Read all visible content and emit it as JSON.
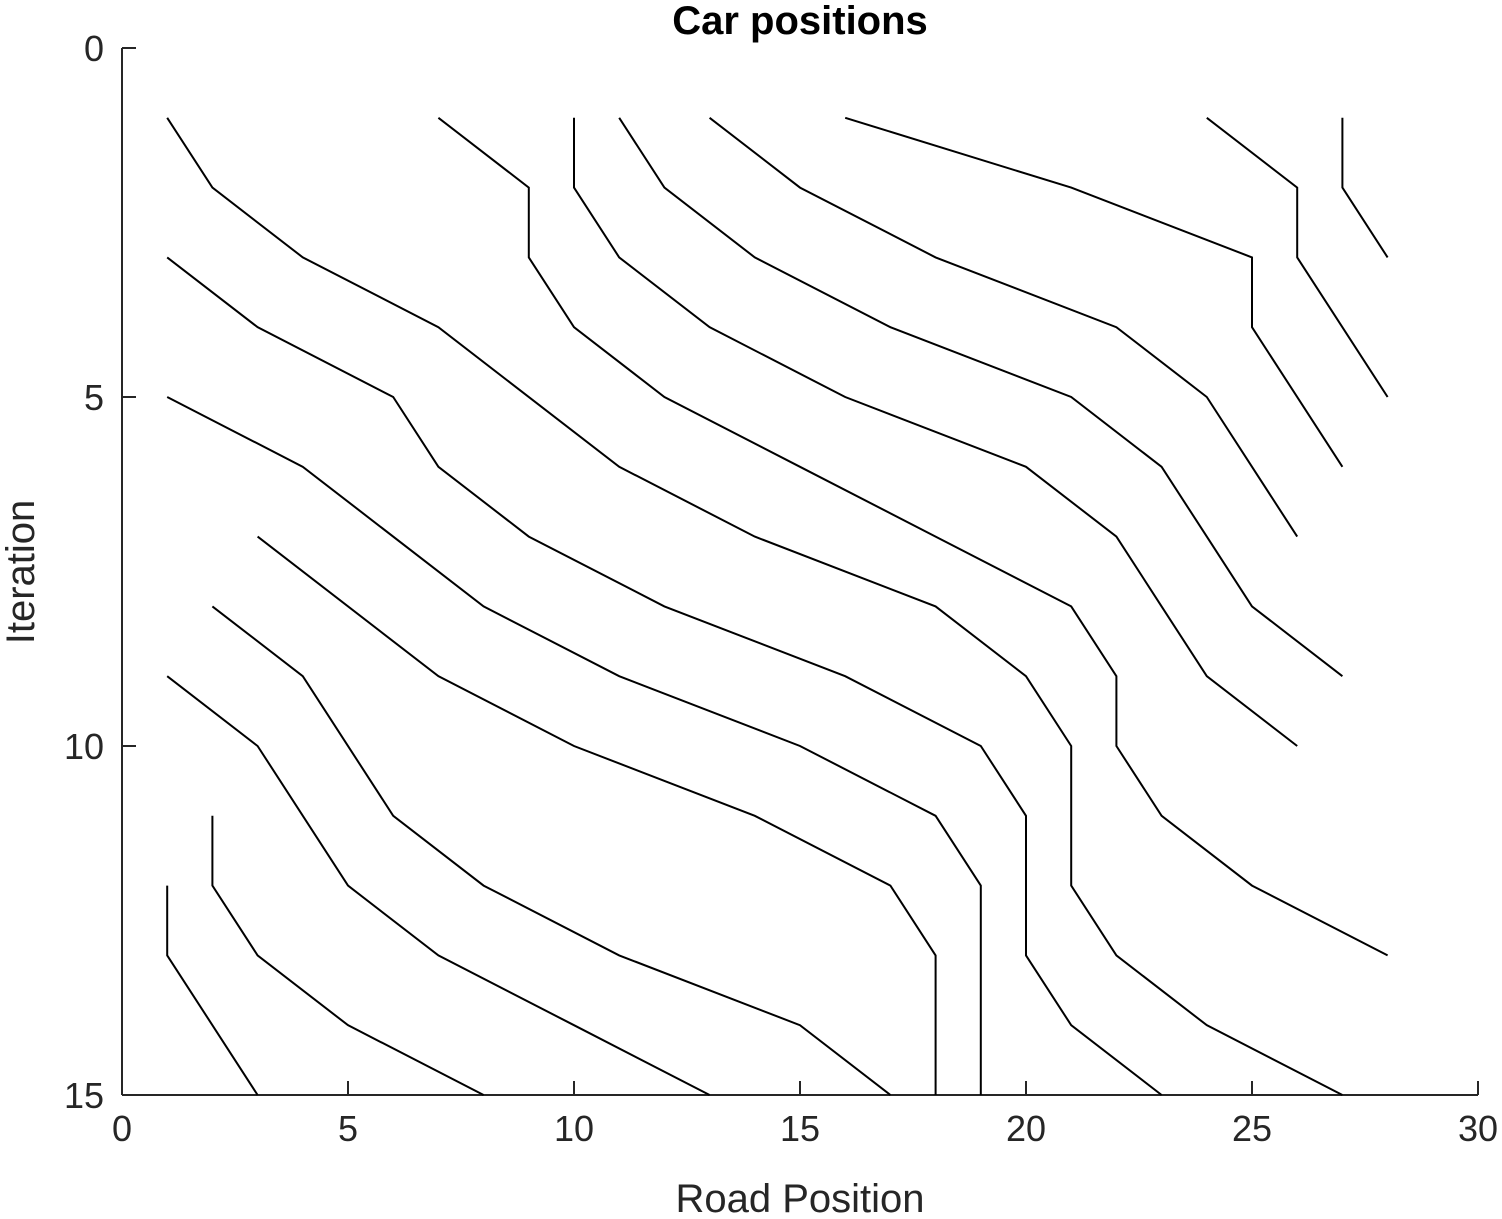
{
  "chart_data": {
    "type": "line",
    "title": "Car positions",
    "xlabel": "Road Position",
    "ylabel": "Iteration",
    "xlim": [
      0,
      30
    ],
    "ylim": [
      0,
      15
    ],
    "y_reversed": true,
    "grid": false,
    "legend": "none",
    "xticks": [
      0,
      5,
      10,
      15,
      20,
      25,
      30
    ],
    "yticks": [
      0,
      5,
      10,
      15
    ],
    "line_color": "#000000",
    "series": [
      {
        "points": [
          [
            1,
            1
          ],
          [
            2,
            2
          ],
          [
            4,
            3
          ],
          [
            7,
            4
          ],
          [
            11,
            6
          ],
          [
            14,
            7
          ],
          [
            18,
            8
          ],
          [
            20,
            9
          ],
          [
            21,
            10
          ],
          [
            21,
            12
          ],
          [
            22,
            13
          ],
          [
            24,
            14
          ],
          [
            27,
            15
          ]
        ]
      },
      {
        "points": [
          [
            1,
            3
          ],
          [
            3,
            4
          ],
          [
            6,
            5
          ],
          [
            7,
            6
          ],
          [
            9,
            7
          ],
          [
            12,
            8
          ],
          [
            16,
            9
          ],
          [
            19,
            10
          ],
          [
            20,
            11
          ],
          [
            20,
            13
          ],
          [
            21,
            14
          ],
          [
            23,
            15
          ]
        ]
      },
      {
        "points": [
          [
            1,
            5
          ],
          [
            4,
            6
          ],
          [
            8,
            8
          ],
          [
            11,
            9
          ],
          [
            15,
            10
          ],
          [
            18,
            11
          ],
          [
            19,
            12
          ],
          [
            19,
            15
          ]
        ]
      },
      {
        "points": [
          [
            3,
            7
          ],
          [
            7,
            9
          ],
          [
            10,
            10
          ],
          [
            14,
            11
          ],
          [
            17,
            12
          ],
          [
            18,
            13
          ],
          [
            18,
            15
          ]
        ]
      },
      {
        "points": [
          [
            2,
            8
          ],
          [
            4,
            9
          ],
          [
            6,
            11
          ],
          [
            8,
            12
          ],
          [
            11,
            13
          ],
          [
            15,
            14
          ],
          [
            17,
            15
          ]
        ]
      },
      {
        "points": [
          [
            1,
            9
          ],
          [
            3,
            10
          ],
          [
            5,
            12
          ],
          [
            7,
            13
          ],
          [
            10,
            14
          ],
          [
            13,
            15
          ]
        ]
      },
      {
        "points": [
          [
            2,
            11
          ],
          [
            2,
            12
          ],
          [
            3,
            13
          ],
          [
            5,
            14
          ],
          [
            8,
            15
          ]
        ]
      },
      {
        "points": [
          [
            1,
            12
          ],
          [
            1,
            13
          ],
          [
            3,
            15
          ]
        ]
      },
      {
        "points": [
          [
            7,
            1
          ],
          [
            9,
            2
          ],
          [
            9,
            3
          ],
          [
            10,
            4
          ],
          [
            12,
            5
          ],
          [
            15,
            6
          ],
          [
            18,
            7
          ],
          [
            21,
            8
          ],
          [
            22,
            9
          ],
          [
            22,
            10
          ],
          [
            23,
            11
          ],
          [
            25,
            12
          ],
          [
            28,
            13
          ]
        ]
      },
      {
        "points": [
          [
            10,
            1
          ],
          [
            10,
            2
          ],
          [
            11,
            3
          ],
          [
            13,
            4
          ],
          [
            16,
            5
          ],
          [
            20,
            6
          ],
          [
            22,
            7
          ],
          [
            23,
            8
          ],
          [
            24,
            9
          ],
          [
            26,
            10
          ]
        ]
      },
      {
        "points": [
          [
            11,
            1
          ],
          [
            12,
            2
          ],
          [
            14,
            3
          ],
          [
            17,
            4
          ],
          [
            21,
            5
          ],
          [
            23,
            6
          ],
          [
            24,
            7
          ],
          [
            25,
            8
          ],
          [
            27,
            9
          ]
        ]
      },
      {
        "points": [
          [
            13,
            1
          ],
          [
            15,
            2
          ],
          [
            18,
            3
          ],
          [
            22,
            4
          ],
          [
            24,
            5
          ],
          [
            26,
            7
          ]
        ]
      },
      {
        "points": [
          [
            16,
            1
          ],
          [
            21,
            2
          ],
          [
            25,
            3
          ],
          [
            25,
            4
          ],
          [
            27,
            6
          ]
        ]
      },
      {
        "points": [
          [
            24,
            1
          ],
          [
            26,
            2
          ],
          [
            26,
            3
          ],
          [
            28,
            5
          ]
        ]
      },
      {
        "points": [
          [
            27,
            1
          ],
          [
            27,
            2
          ],
          [
            28,
            3
          ]
        ]
      }
    ]
  }
}
